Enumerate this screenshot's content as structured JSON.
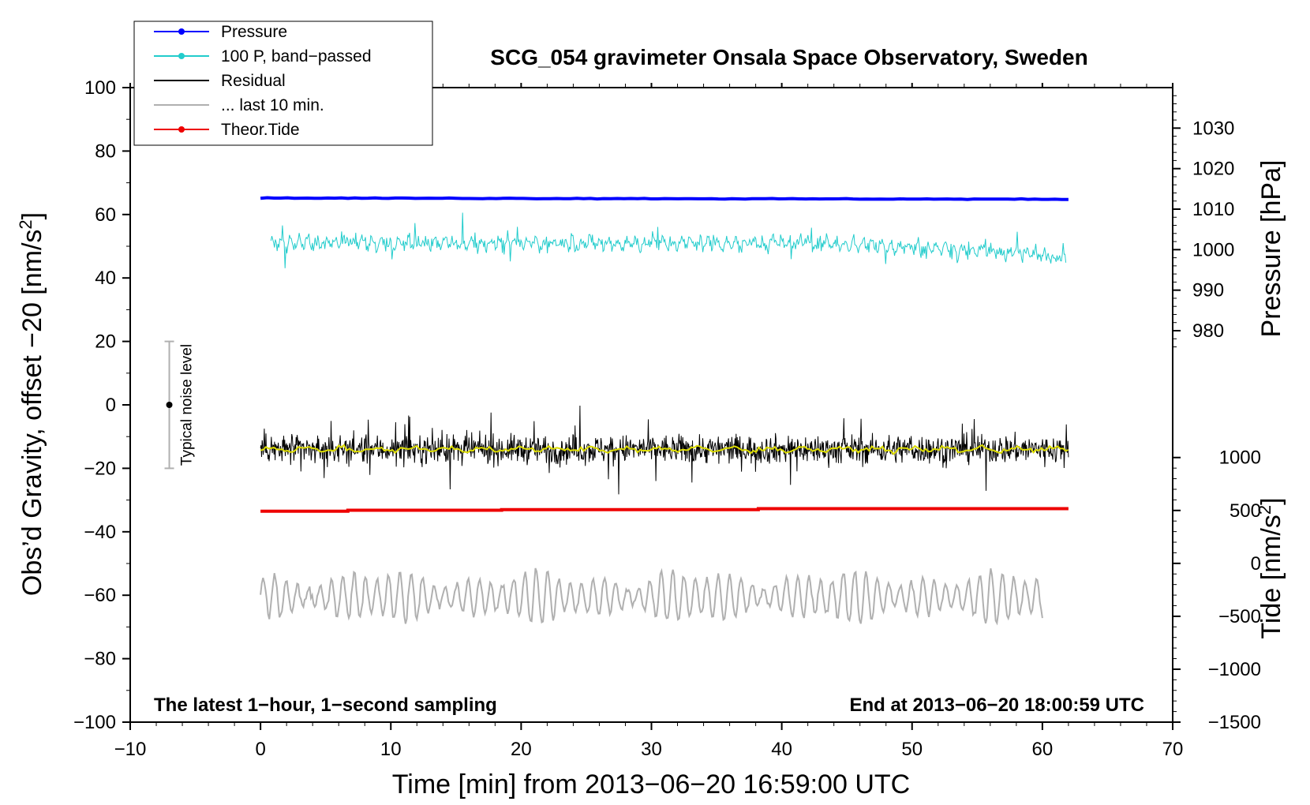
{
  "chart_data": {
    "type": "line",
    "title": "SCG_054 gravimeter Onsala Space Observatory, Sweden",
    "xlabel": "Time [min] from 2013−06−20 16:59:00 UTC",
    "ylabel_left": "Obs’d Gravity, offset −20 [nm/s",
    "ylabel_left_sup": "2",
    "ylabel_left_end": "]",
    "ylabel_pressure": "Pressure [hPa]",
    "ylabel_tide": "Tide [nm/s",
    "ylabel_tide_sup": "2",
    "ylabel_tide_end": "]",
    "xlim": [
      -10,
      70
    ],
    "ylim": [
      -100,
      100
    ],
    "x_ticks": [
      -10,
      0,
      10,
      20,
      30,
      40,
      50,
      60,
      70
    ],
    "x_tick_labels": [
      "−10",
      "0",
      "10",
      "20",
      "30",
      "40",
      "50",
      "60",
      "70"
    ],
    "y_ticks": [
      -100,
      -80,
      -60,
      -40,
      -20,
      0,
      20,
      40,
      60,
      80,
      100
    ],
    "y_tick_labels": [
      "−100",
      "−80",
      "−60",
      "−40",
      "−20",
      "0",
      "20",
      "40",
      "60",
      "80",
      "100"
    ],
    "pressure_axis": {
      "ticks": [
        980,
        990,
        1000,
        1010,
        1020,
        1030
      ],
      "tick_labels": [
        "980",
        "990",
        "1000",
        "1010",
        "1020",
        "1030"
      ],
      "display_range": [
        975,
        1040
      ],
      "plot_y_range": [
        17,
        100
      ]
    },
    "tide_axis": {
      "ticks": [
        -1500,
        -1000,
        -500,
        0,
        500,
        1000
      ],
      "tick_labels": [
        "−1500",
        "−1000",
        "−500",
        "0",
        "500",
        "1000"
      ],
      "display_range": [
        -1500,
        1000
      ],
      "plot_y_range": [
        -100,
        -16.6
      ]
    },
    "legend": [
      {
        "label": "Pressure",
        "color": "#0000ff",
        "marker": true
      },
      {
        "label": "100 P, band−passed",
        "color": "#22cccc",
        "marker": true
      },
      {
        "label": "Residual",
        "color": "#000000",
        "marker": false
      },
      {
        "label": "... last 10 min.",
        "color": "#b0b0b0",
        "marker": false
      },
      {
        "label": "Theor.Tide",
        "color": "#ee0000",
        "marker": true
      }
    ],
    "series": [
      {
        "name": "Pressure",
        "color": "#0000ff",
        "x_range": [
          0,
          62
        ],
        "level": 65.2,
        "end_level": 64.8
      },
      {
        "name": "100 P, band−passed",
        "color": "#22cccc",
        "x_range": [
          0.8,
          61.8
        ],
        "center": 51,
        "end_center": 47,
        "amplitude": 4
      },
      {
        "name": "Residual",
        "color": "#000000",
        "x_range": [
          0,
          62
        ],
        "center": -14,
        "amplitude": 8
      },
      {
        "name": "Residual smoothed",
        "color": "#dddd00",
        "x_range": [
          0,
          62
        ],
        "center": -14
      },
      {
        "name": "... last 10 min.",
        "color": "#b0b0b0",
        "x_range": [
          0,
          60
        ],
        "center": -60.5,
        "amplitude": 7
      },
      {
        "name": "Theor.Tide",
        "color": "#ee0000",
        "x_range": [
          0,
          62
        ],
        "steps": [
          [
            0,
            -33.5
          ],
          [
            6.7,
            -33.2
          ],
          [
            18.5,
            -33.0
          ],
          [
            38.2,
            -32.7
          ],
          [
            62,
            -32.7
          ]
        ]
      }
    ],
    "noise_bar": {
      "x": -7,
      "center": 0,
      "low": -20,
      "high": 20,
      "label": "Typical noise level"
    },
    "note_left": "The latest 1−hour, 1−second sampling",
    "note_right": "End at 2013−06−20 18:00:59 UTC"
  }
}
